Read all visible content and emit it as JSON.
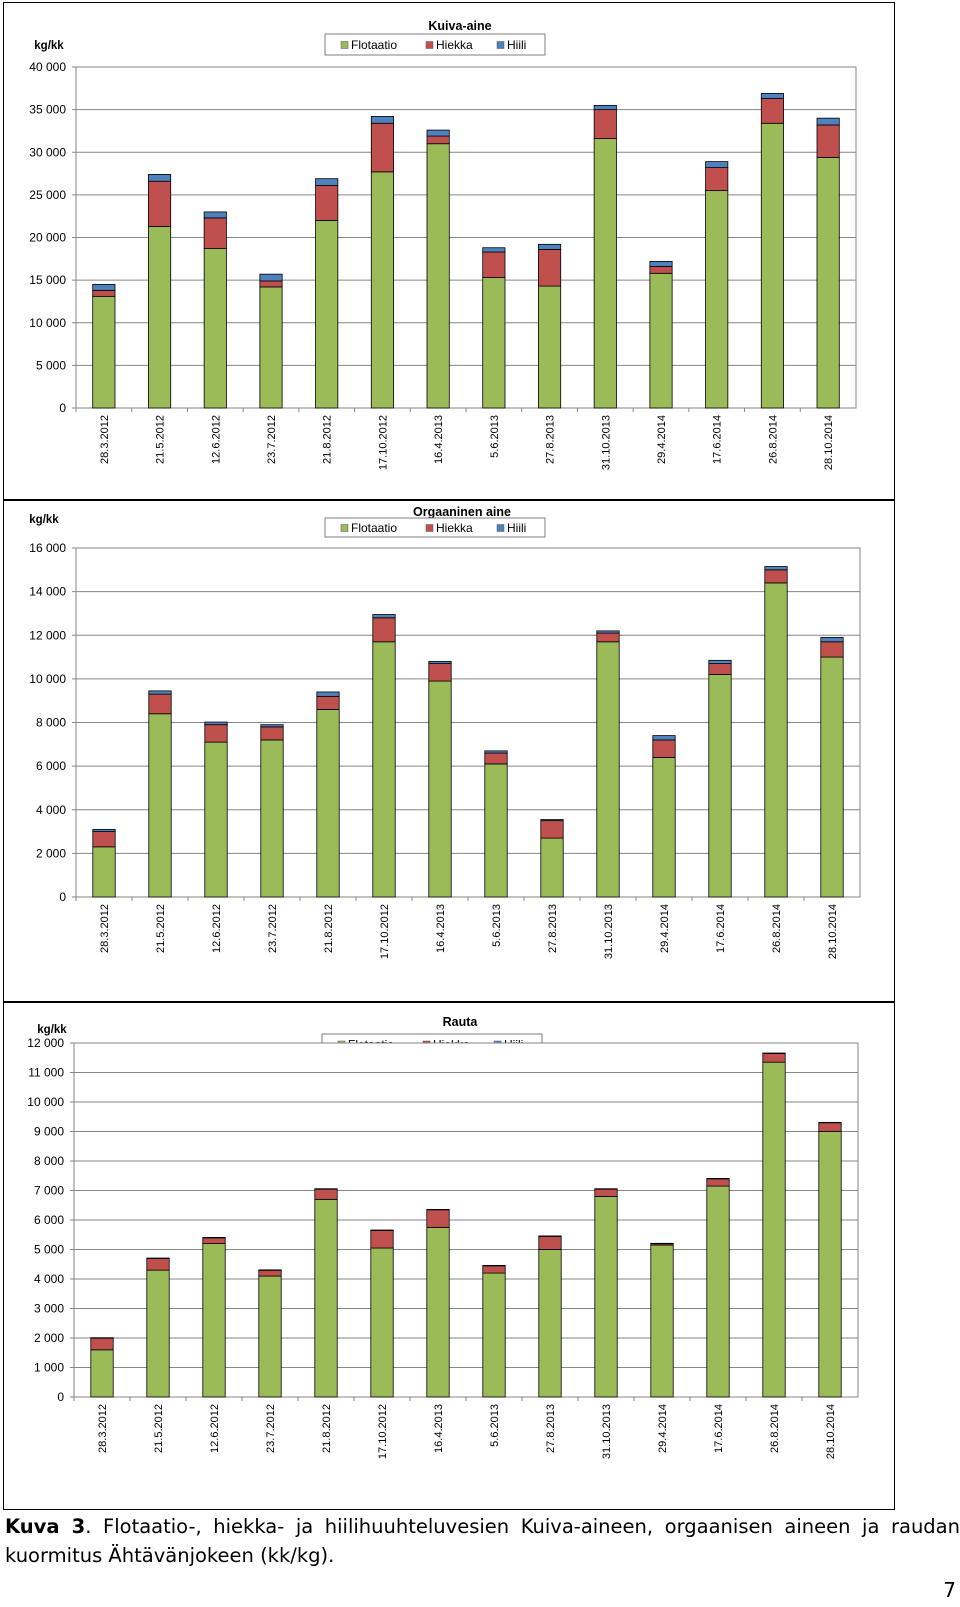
{
  "chart_data": [
    {
      "type": "bar",
      "stacked": true,
      "title": "Kuiva-aine",
      "ylabel": "kg/kk",
      "ylim": [
        0,
        40000
      ],
      "yticks": [
        0,
        5000,
        10000,
        15000,
        20000,
        25000,
        30000,
        35000,
        40000
      ],
      "ytick_labels": [
        "0",
        "5 000",
        "10 000",
        "15 000",
        "20 000",
        "25 000",
        "30 000",
        "35 000",
        "40 000"
      ],
      "grid": true,
      "legend": "top-center",
      "categories": [
        "28.3.2012",
        "21.5.2012",
        "12.6.2012",
        "23.7.2012",
        "21.8.2012",
        "17.10.2012",
        "16.4.2013",
        "5.6.2013",
        "27.8.2013",
        "31.10.2013",
        "29.4.2014",
        "17.6.2014",
        "26.8.2014",
        "28.10.2014"
      ],
      "series": [
        {
          "name": "Flotaatio",
          "color": "#9bbb59",
          "values": [
            13100,
            21300,
            18700,
            14200,
            22000,
            27700,
            31000,
            15300,
            14300,
            31600,
            15800,
            25500,
            33400,
            29400
          ]
        },
        {
          "name": "Hiekka",
          "color": "#c0504d",
          "values": [
            700,
            5300,
            3600,
            700,
            4100,
            5700,
            900,
            3000,
            4300,
            3400,
            800,
            2700,
            2900,
            3800
          ]
        },
        {
          "name": "Hiili",
          "color": "#4f81bd",
          "values": [
            700,
            800,
            700,
            800,
            800,
            800,
            700,
            500,
            600,
            500,
            600,
            700,
            600,
            800
          ]
        }
      ]
    },
    {
      "type": "bar",
      "stacked": true,
      "title": "Orgaaninen aine",
      "ylabel": "kg/kk",
      "ylim": [
        0,
        16000
      ],
      "yticks": [
        0,
        2000,
        4000,
        6000,
        8000,
        10000,
        12000,
        14000,
        16000
      ],
      "ytick_labels": [
        "0",
        "2 000",
        "4 000",
        "6 000",
        "8 000",
        "10 000",
        "12 000",
        "14 000",
        "16 000"
      ],
      "grid": true,
      "legend": "top-center",
      "categories": [
        "28.3.2012",
        "21.5.2012",
        "12.6.2012",
        "23.7.2012",
        "21.8.2012",
        "17.10.2012",
        "16.4.2013",
        "5.6.2013",
        "27.8.2013",
        "31.10.2013",
        "29.4.2014",
        "17.6.2014",
        "26.8.2014",
        "28.10.2014"
      ],
      "series": [
        {
          "name": "Flotaatio",
          "color": "#9bbb59",
          "values": [
            2300,
            8400,
            7100,
            7200,
            8600,
            11700,
            9900,
            6100,
            2700,
            11700,
            6400,
            10200,
            14400,
            11000
          ]
        },
        {
          "name": "Hiekka",
          "color": "#c0504d",
          "values": [
            700,
            900,
            800,
            600,
            600,
            1100,
            800,
            500,
            800,
            400,
            800,
            500,
            600,
            700
          ]
        },
        {
          "name": "Hiili",
          "color": "#4f81bd",
          "values": [
            100,
            150,
            120,
            100,
            200,
            150,
            100,
            100,
            50,
            100,
            200,
            150,
            150,
            200
          ]
        }
      ]
    },
    {
      "type": "bar",
      "stacked": true,
      "title": "Rauta",
      "ylabel": "kg/kk",
      "ylim": [
        0,
        12000
      ],
      "yticks": [
        0,
        1000,
        2000,
        3000,
        4000,
        5000,
        6000,
        7000,
        8000,
        9000,
        10000,
        11000,
        12000
      ],
      "ytick_labels": [
        "0",
        "1 000",
        "2 000",
        "3 000",
        "4 000",
        "5 000",
        "6 000",
        "7 000",
        "8 000",
        "9 000",
        "10 000",
        "11 000",
        "12 000"
      ],
      "grid": true,
      "legend": "top-center",
      "categories": [
        "28.3.2012",
        "21.5.2012",
        "12.6.2012",
        "23.7.2012",
        "21.8.2012",
        "17.10.2012",
        "16.4.2013",
        "5.6.2013",
        "27.8.2013",
        "31.10.2013",
        "29.4.2014",
        "17.6.2014",
        "26.8.2014",
        "28.10.2014"
      ],
      "series": [
        {
          "name": "Flotaatio",
          "color": "#9bbb59",
          "values": [
            1600,
            4300,
            5200,
            4100,
            6700,
            5050,
            5750,
            4200,
            5000,
            6800,
            5150,
            7150,
            11350,
            9000
          ]
        },
        {
          "name": "Hiekka",
          "color": "#c0504d",
          "values": [
            400,
            400,
            200,
            200,
            350,
            600,
            600,
            250,
            450,
            250,
            50,
            250,
            300,
            300
          ]
        },
        {
          "name": "Hiili",
          "color": "#4f81bd",
          "values": [
            10,
            10,
            10,
            10,
            10,
            10,
            10,
            10,
            10,
            10,
            10,
            10,
            10,
            10
          ]
        }
      ]
    }
  ],
  "caption": {
    "label": "Kuva 3",
    "text": ". Flotaatio-, hiekka- ja hiilihuuhteluvesien Kuiva-aineen, orgaanisen aineen ja raudan kuormitus Ähtävänjokeen (kk/kg)."
  },
  "page_number": "7"
}
